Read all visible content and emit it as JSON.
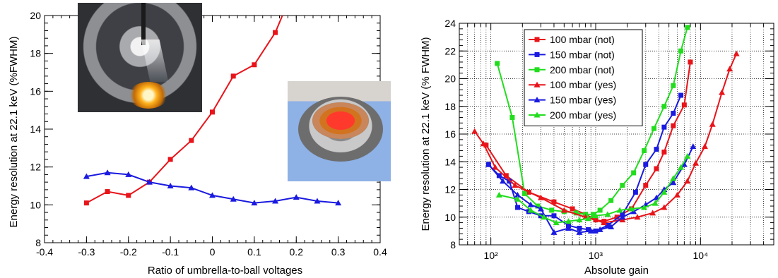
{
  "chart_data": [
    {
      "type": "line",
      "title": "",
      "xlabel": "Ratio of umbrella-to-ball voltages",
      "ylabel": "Energy resolution at 22.1 keV (%FWHM)",
      "xlim": [
        -0.4,
        0.4
      ],
      "ylim": [
        8,
        20
      ],
      "xticks": [
        "-0.4",
        "-0.3",
        "-0.2",
        "-0.1",
        "0",
        "0.1",
        "0.2",
        "0.3",
        "0.4"
      ],
      "yticks": [
        "8",
        "10",
        "12",
        "14",
        "16",
        "18",
        "20"
      ],
      "grid": false,
      "legend": "none",
      "series": [
        {
          "color": "#e8141a",
          "marker": "square",
          "x": [
            -0.3,
            -0.25,
            -0.2,
            -0.15,
            -0.1,
            -0.05,
            0.0,
            0.05,
            0.1,
            0.15,
            0.167
          ],
          "y": [
            10.1,
            10.7,
            10.5,
            11.2,
            12.4,
            13.4,
            14.9,
            16.8,
            17.4,
            19.1,
            20.0
          ]
        },
        {
          "color": "#1a1ae0",
          "marker": "triangle",
          "x": [
            -0.3,
            -0.25,
            -0.2,
            -0.15,
            -0.1,
            -0.05,
            0.0,
            0.05,
            0.1,
            0.15,
            0.2,
            0.25,
            0.3
          ],
          "y": [
            11.5,
            11.7,
            11.6,
            11.2,
            11.0,
            10.9,
            10.5,
            10.3,
            10.1,
            10.2,
            10.4,
            10.2,
            10.1
          ]
        }
      ]
    },
    {
      "type": "line",
      "title": "",
      "xlabel": "Absolute gain",
      "ylabel": "Energy resolution at 22.1 keV (% FWHM)",
      "xscale": "log",
      "xlim": [
        50,
        50000
      ],
      "ylim": [
        8,
        24
      ],
      "xticks": [
        "10²",
        "10³",
        "10⁴"
      ],
      "yticks": [
        "8",
        "10",
        "12",
        "14",
        "16",
        "18",
        "20",
        "22",
        "24"
      ],
      "grid": true,
      "legend": "top-center",
      "series": [
        {
          "name": "100 mbar (not)",
          "color": "#e8141a",
          "marker": "square",
          "x": [
            90,
            140,
            230,
            400,
            600,
            800,
            1000,
            1200,
            1600,
            2200,
            3000,
            3800,
            4500,
            5500,
            7000,
            8000
          ],
          "y": [
            15.2,
            13.0,
            11.8,
            11.1,
            10.6,
            10.2,
            9.8,
            9.7,
            10.0,
            10.6,
            12.3,
            13.5,
            14.7,
            16.6,
            18.1,
            21.2
          ]
        },
        {
          "name": "150 mbar (not)",
          "color": "#1a1ae0",
          "marker": "square",
          "x": [
            95,
            120,
            150,
            180,
            230,
            300,
            400,
            550,
            700,
            850,
            1000,
            1300,
            1800,
            2400,
            3000,
            3800,
            4500,
            5500,
            6500
          ],
          "y": [
            13.8,
            13.0,
            12.6,
            10.7,
            10.4,
            10.1,
            10.1,
            9.4,
            9.2,
            9.1,
            9.0,
            9.4,
            10.2,
            11.8,
            13.8,
            14.9,
            16.5,
            17.5,
            18.8
          ]
        },
        {
          "name": "200 mbar (not)",
          "color": "#22dd1e",
          "marker": "square",
          "x": [
            115,
            160,
            210,
            280,
            380,
            500,
            650,
            800,
            950,
            1100,
            1400,
            1800,
            2300,
            2900,
            3600,
            4500,
            5500,
            6500,
            7500
          ],
          "y": [
            21.1,
            17.2,
            11.7,
            10.8,
            10.5,
            10.4,
            10.3,
            10.2,
            10.2,
            10.5,
            11.2,
            12.3,
            13.2,
            14.8,
            16.4,
            18.0,
            19.5,
            22.0,
            23.7
          ]
        },
        {
          "name": "100 mbar (yes)",
          "color": "#e8141a",
          "marker": "triangle",
          "x": [
            70,
            85,
            110,
            170,
            300,
            500,
            800,
            1200,
            1800,
            2500,
            3500,
            4500,
            6000,
            7500,
            9000,
            11000,
            13000,
            16000,
            19000,
            22000
          ],
          "y": [
            16.2,
            15.3,
            13.6,
            12.3,
            11.4,
            10.5,
            10.0,
            9.6,
            9.8,
            10.0,
            10.3,
            10.7,
            11.6,
            12.6,
            13.9,
            15.1,
            16.7,
            19.0,
            20.7,
            21.8
          ]
        },
        {
          "name": "150 mbar (yes)",
          "color": "#1a1ae0",
          "marker": "triangle",
          "x": [
            95,
            130,
            180,
            240,
            300,
            400,
            550,
            700,
            900,
            1100,
            1400,
            1800,
            2300,
            3000,
            3800,
            4500,
            5500,
            7000,
            8500
          ],
          "y": [
            13.8,
            12.6,
            11.6,
            10.9,
            10.6,
            8.9,
            9.2,
            8.9,
            9.0,
            9.1,
            9.3,
            10.0,
            10.4,
            10.9,
            11.4,
            12.0,
            12.5,
            13.8,
            15.1
          ]
        },
        {
          "name": "200 mbar (yes)",
          "color": "#22dd1e",
          "marker": "triangle",
          "x": [
            120,
            180,
            240,
            320,
            420,
            550,
            700,
            850,
            1000,
            1300,
            1700,
            2200,
            2900,
            3700,
            4500,
            5500,
            6500,
            7500
          ],
          "y": [
            11.6,
            11.3,
            10.5,
            10.0,
            9.6,
            9.7,
            9.8,
            9.9,
            10.1,
            10.2,
            10.5,
            10.6,
            10.7,
            11.0,
            11.8,
            12.8,
            13.6,
            14.4
          ]
        }
      ]
    }
  ]
}
